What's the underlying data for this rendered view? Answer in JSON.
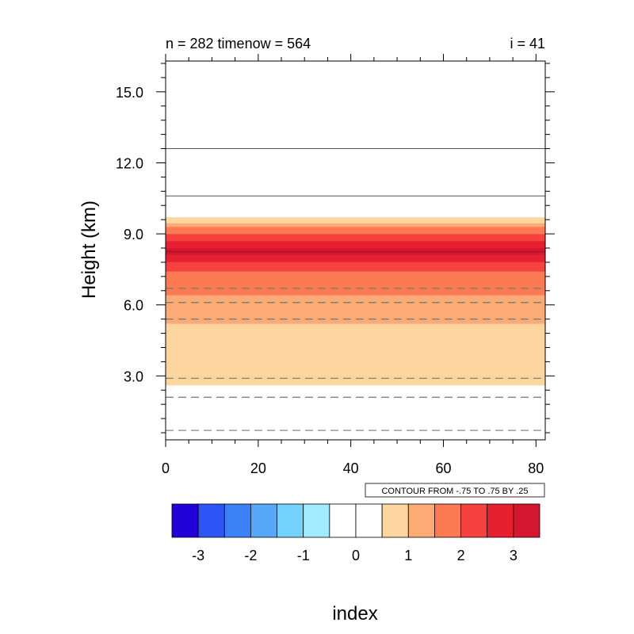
{
  "chart_data": {
    "type": "heatmap",
    "title_left": "n = 282 timenow = 564",
    "title_right": "i = 41",
    "xlabel": "index",
    "ylabel": "Height (km)",
    "xlim": [
      0,
      82
    ],
    "ylim": [
      0.3,
      16.3
    ],
    "x_ticks": [
      0,
      20,
      40,
      60,
      80
    ],
    "x_tick_labels": [
      "0",
      "20",
      "40",
      "60",
      "80"
    ],
    "y_ticks": [
      3.0,
      6.0,
      9.0,
      12.0,
      15.0
    ],
    "y_tick_labels": [
      "3.0",
      "6.0",
      "9.0",
      "12.0",
      "15.0"
    ],
    "contour_note": "CONTOUR FROM -.75 TO .75 BY .25",
    "bands": [
      {
        "y0": 2.6,
        "y1": 5.2,
        "level": 1
      },
      {
        "y0": 5.2,
        "y1": 6.4,
        "level": 2
      },
      {
        "y0": 6.4,
        "y1": 7.4,
        "level": 3
      },
      {
        "y0": 7.4,
        "y1": 7.8,
        "level": 4
      },
      {
        "y0": 7.8,
        "y1": 8.1,
        "level": 5
      },
      {
        "y0": 8.1,
        "y1": 8.4,
        "level": 6
      },
      {
        "y0": 8.4,
        "y1": 8.7,
        "level": 5
      },
      {
        "y0": 8.7,
        "y1": 9.0,
        "level": 4
      },
      {
        "y0": 9.0,
        "y1": 9.3,
        "level": 3
      },
      {
        "y0": 9.3,
        "y1": 9.45,
        "level": 2
      },
      {
        "y0": 9.45,
        "y1": 9.7,
        "level": 1
      }
    ],
    "solid_lines": [
      10.6,
      12.6
    ],
    "dashed_lines": [
      0.7,
      2.1,
      2.9,
      5.4,
      6.1,
      6.7
    ],
    "center_line": 8.25,
    "colorbar": {
      "colors": [
        "#2200d8",
        "#2c55f5",
        "#3b82f7",
        "#54a8f7",
        "#73d2fa",
        "#a0ebff",
        "#ffffff",
        "#ffffff",
        "#fdd59e",
        "#fdab75",
        "#fb7a52",
        "#f5423f",
        "#e6202f",
        "#d4172e"
      ],
      "tick_labels": [
        "-3",
        "-2",
        "-1",
        "0",
        "1",
        "2",
        "3"
      ]
    }
  }
}
